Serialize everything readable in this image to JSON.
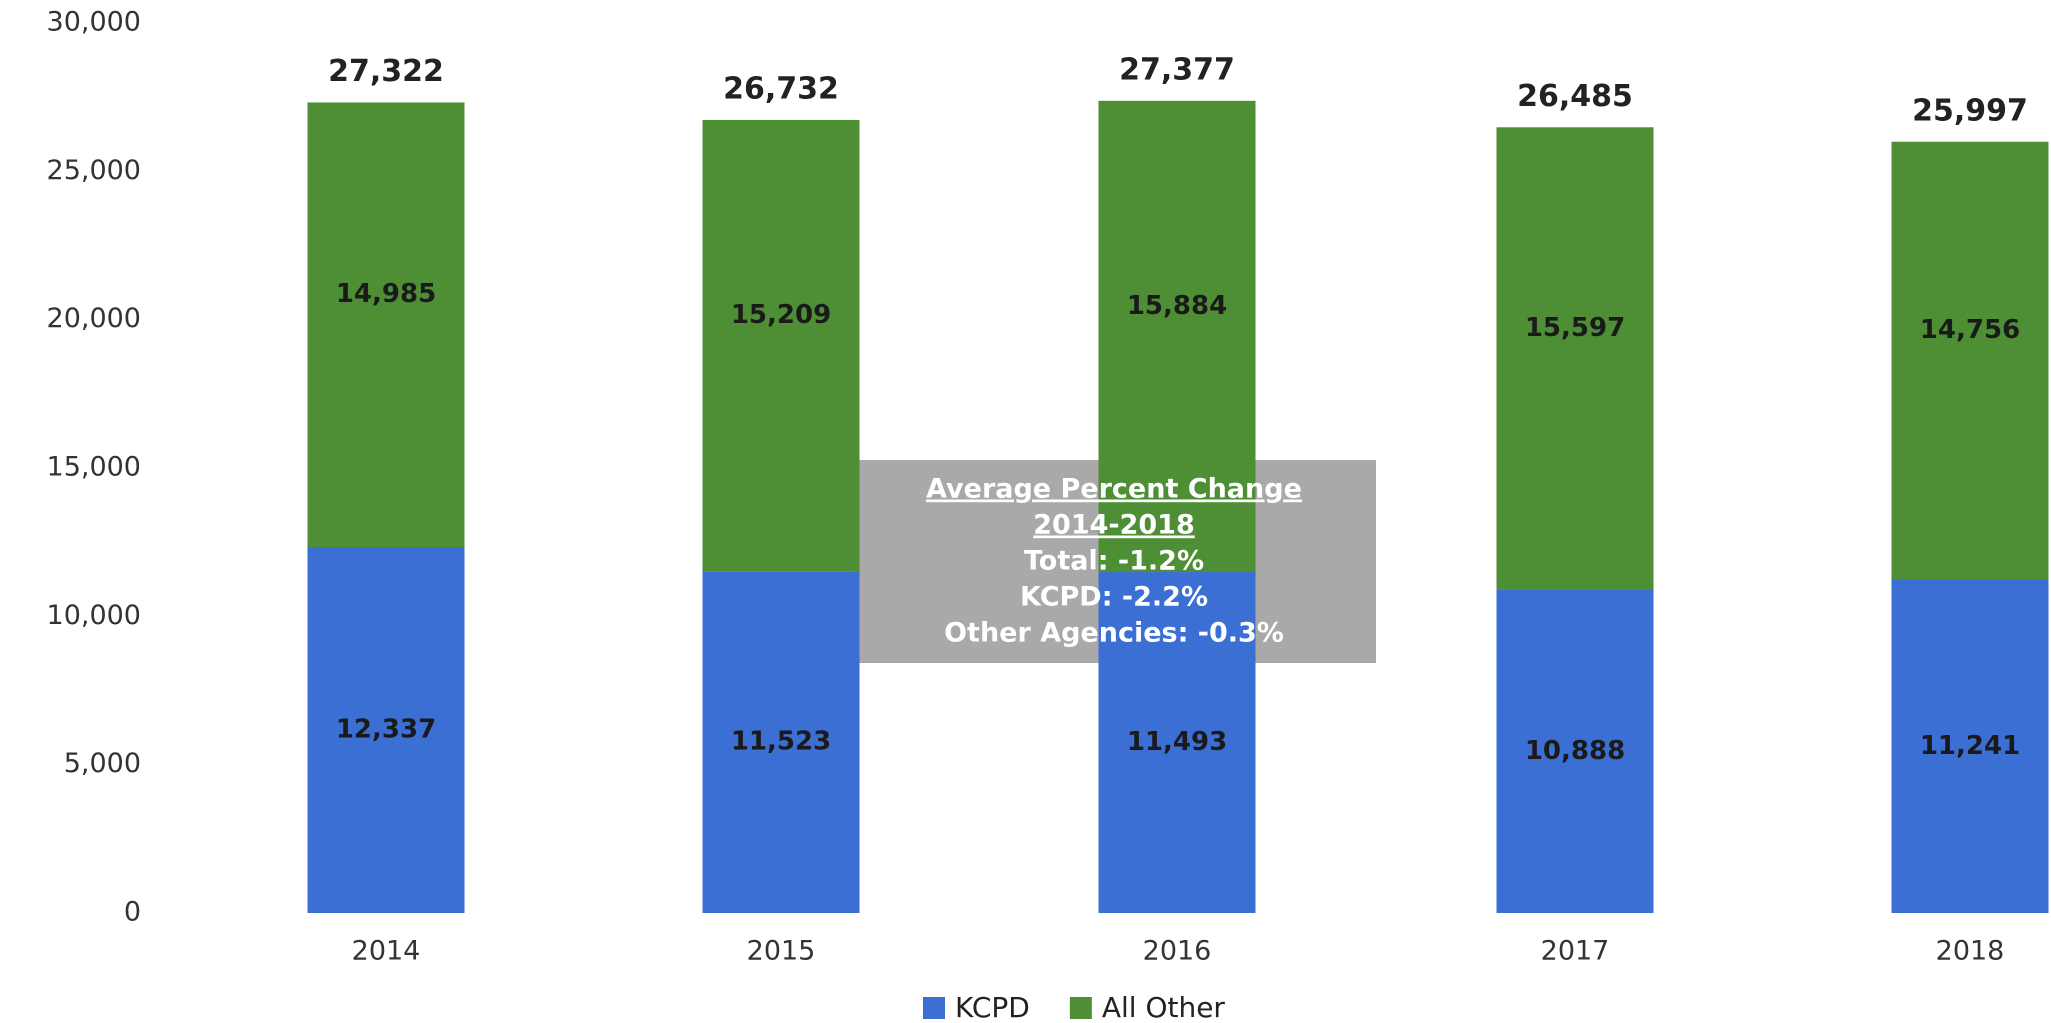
{
  "chart_data": {
    "type": "stacked_bar",
    "categories": [
      "2014",
      "2015",
      "2016",
      "2017",
      "2018"
    ],
    "series": [
      {
        "name": "KCPD",
        "color": "#3b6fd4",
        "values": [
          12337,
          11523,
          11493,
          10888,
          11241
        ],
        "value_labels": [
          "12,337",
          "11,523",
          "11,493",
          "10,888",
          "11,241"
        ]
      },
      {
        "name": "All Other",
        "color": "#4e8f36",
        "values": [
          14985,
          15209,
          15884,
          15597,
          14756
        ],
        "value_labels": [
          "14,985",
          "15,209",
          "15,884",
          "15,597",
          "14,756"
        ]
      }
    ],
    "totals": [
      27322,
      26732,
      27377,
      26485,
      25997
    ],
    "total_labels": [
      "27,322",
      "26,732",
      "27,377",
      "26,485",
      "25,997"
    ],
    "ylim": [
      0,
      30000
    ],
    "yticks": [
      0,
      {
        "value": 5000,
        "label": "5,000"
      },
      {
        "value": 10000,
        "label": "10,000"
      },
      {
        "value": 15000,
        "label": "15,000"
      },
      {
        "value": 20000,
        "label": "20,000"
      },
      {
        "value": 25000,
        "label": "25,000"
      },
      {
        "value": 30000,
        "label": "30,000"
      }
    ],
    "annotation": {
      "title": "Average Percent Change",
      "period": "2014-2018",
      "lines": [
        "Total: -1.2%",
        "KCPD: -2.2%",
        "Other Agencies: -0.3%"
      ]
    },
    "legend": "bottom"
  }
}
